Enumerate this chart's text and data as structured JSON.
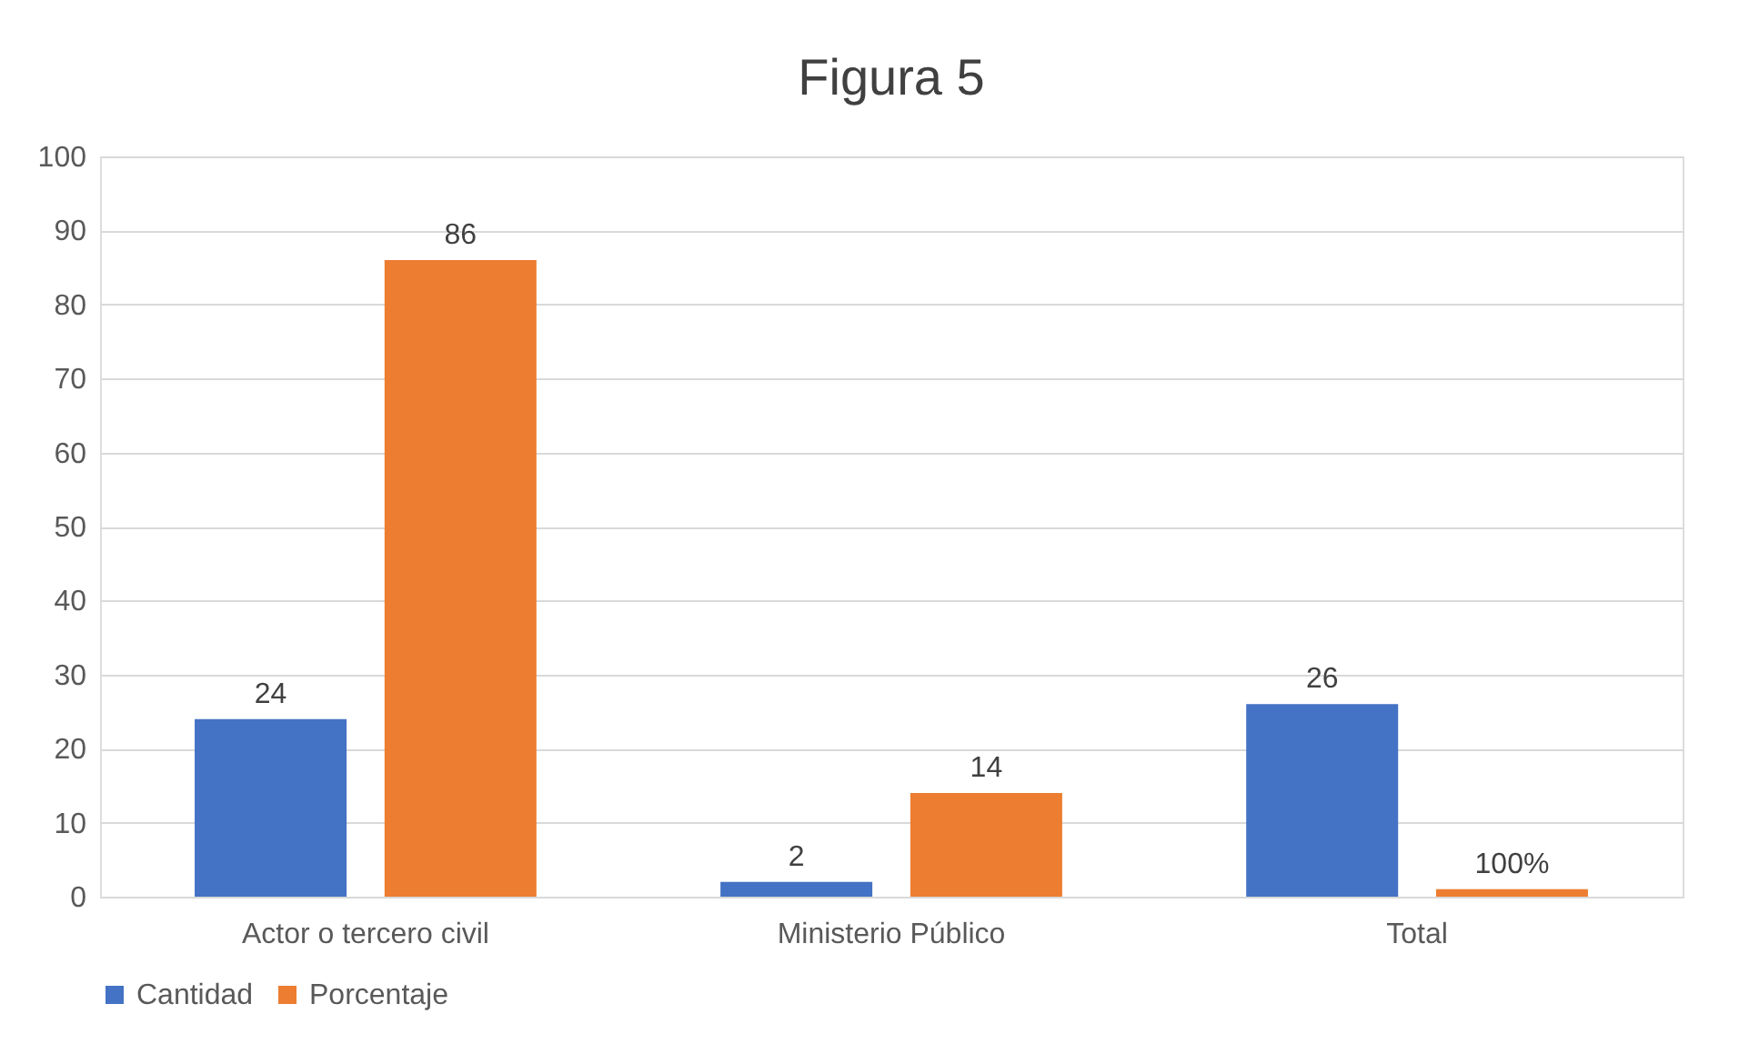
{
  "chart_data": {
    "type": "bar",
    "title": "Figura 5",
    "categories": [
      "Actor o tercero civil",
      "Ministerio Público",
      "Total"
    ],
    "series": [
      {
        "name": "Cantidad",
        "color": "#4472c4",
        "values": [
          24,
          2,
          26
        ],
        "value_labels": [
          "24",
          "2",
          "26"
        ]
      },
      {
        "name": "Porcentaje",
        "color": "#ed7d31",
        "values": [
          86,
          14,
          1
        ],
        "value_labels": [
          "86",
          "14",
          "100%"
        ]
      }
    ],
    "ylim": [
      0,
      100
    ],
    "yticks": [
      0,
      10,
      20,
      30,
      40,
      50,
      60,
      70,
      80,
      90,
      100
    ],
    "grid": "y",
    "legend": "bottom"
  }
}
